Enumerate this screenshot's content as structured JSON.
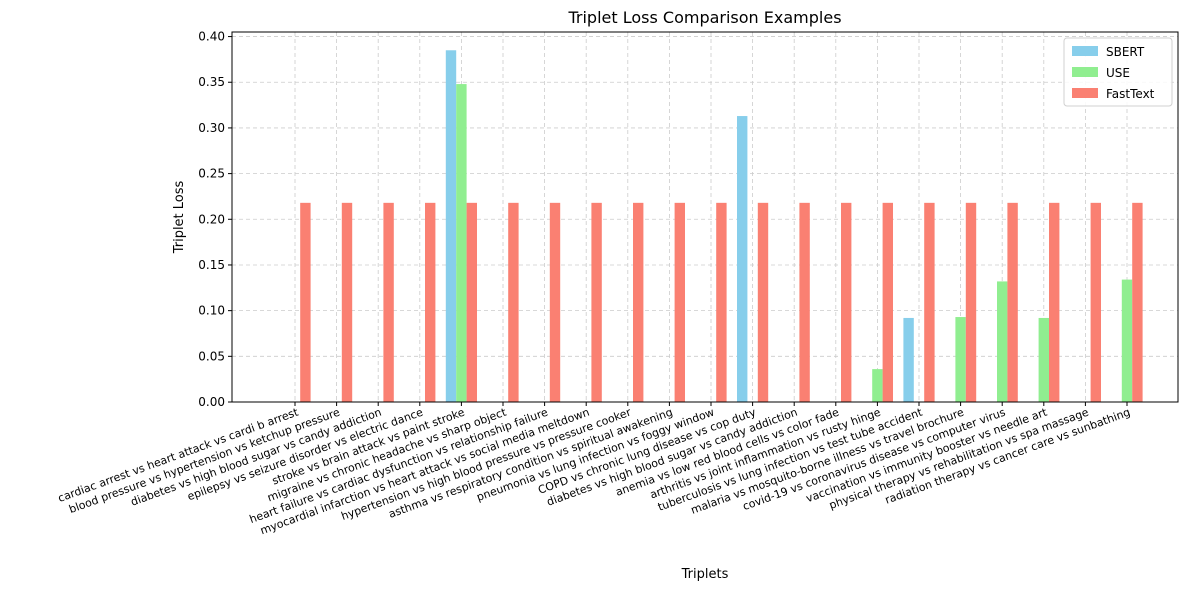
{
  "chart_data": {
    "type": "bar",
    "title": "Triplet Loss Comparison Examples",
    "xlabel": "Triplets",
    "ylabel": "Triplet Loss",
    "ylim": [
      0,
      0.405
    ],
    "yticks": [
      "0.00",
      "0.05",
      "0.10",
      "0.15",
      "0.20",
      "0.25",
      "0.30",
      "0.35",
      "0.40"
    ],
    "grid": true,
    "legend_position": "top-right",
    "categories": [
      "cardiac arrest vs heart attack vs cardi b arrest",
      "blood pressure vs hypertension vs ketchup pressure",
      "diabetes vs high blood sugar vs candy addiction",
      "epilepsy vs seizure disorder vs electric dance",
      "stroke vs brain attack vs paint stroke",
      "migraine vs chronic headache vs sharp object",
      "heart failure vs cardiac dysfunction vs relationship failure",
      "myocardial infarction vs heart attack vs social media meltdown",
      "hypertension vs high blood pressure vs pressure cooker",
      "asthma vs respiratory condition vs spiritual awakening",
      "pneumonia vs lung infection vs foggy window",
      "COPD vs chronic lung disease vs cop duty",
      "diabetes vs high blood sugar vs candy addiction",
      "anemia vs low red blood cells vs color fade",
      "arthritis vs joint inflammation vs rusty hinge",
      "tuberculosis vs lung infection vs test tube accident",
      "malaria vs mosquito-borne illness vs travel brochure",
      "covid-19 vs coronavirus disease vs computer virus",
      "vaccination vs immunity booster vs needle art",
      "physical therapy vs rehabilitation vs spa massage",
      "radiation therapy vs cancer care vs sunbathing"
    ],
    "series": [
      {
        "name": "SBERT",
        "color": "#87ceeb",
        "values": [
          0,
          0,
          0,
          0,
          0.385,
          0,
          0,
          0,
          0,
          0,
          0,
          0.313,
          0,
          0,
          0,
          0.092,
          0,
          0,
          0,
          0,
          0
        ]
      },
      {
        "name": "USE",
        "color": "#90ee90",
        "values": [
          0,
          0,
          0,
          0,
          0.348,
          0,
          0,
          0,
          0,
          0,
          0,
          0,
          0,
          0,
          0.036,
          0,
          0.093,
          0.132,
          0.092,
          0,
          0.134
        ]
      },
      {
        "name": "FastText",
        "color": "#fa8072",
        "values": [
          0.218,
          0.218,
          0.218,
          0.218,
          0.218,
          0.218,
          0.218,
          0.218,
          0.218,
          0.218,
          0.218,
          0.218,
          0.218,
          0.218,
          0.218,
          0.218,
          0.218,
          0.218,
          0.218,
          0.218,
          0.218
        ]
      }
    ]
  }
}
